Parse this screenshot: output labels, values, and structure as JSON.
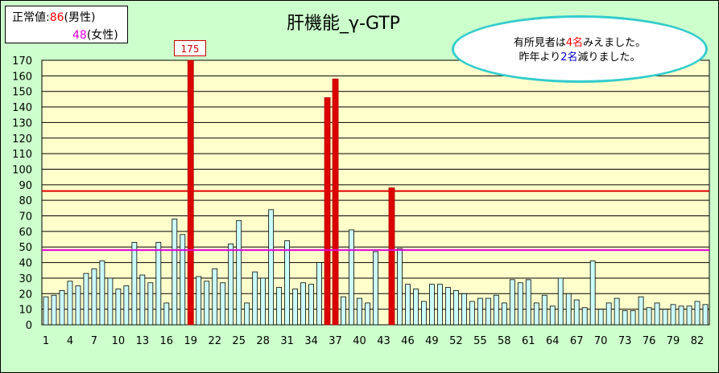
{
  "legend": {
    "row1_prefix": "正常値:",
    "male_value": "86",
    "male_label": "(男性)",
    "female_value": "48",
    "female_label": "(女性)"
  },
  "bubble": {
    "l1_a": "有所見者は",
    "l1_b": "4名",
    "l1_c": "みえました。",
    "l2_a": "昨年より",
    "l2_b": "2名",
    "l2_c": "減りました。"
  },
  "peak_label": "175",
  "colors": {
    "background": "#ccffcc",
    "plot_area": "#ffffcc",
    "normal_bar": "#ccffff",
    "highlight_bar": "#dd0000",
    "male_line": "#dd0000",
    "female_line": "#e000e0"
  },
  "chart_data": {
    "type": "bar",
    "title": "肝機能_γ-GTP",
    "ylim": [
      0,
      170
    ],
    "y_ticks": [
      0,
      10,
      20,
      30,
      40,
      50,
      60,
      70,
      80,
      90,
      100,
      110,
      120,
      130,
      140,
      150,
      160,
      170
    ],
    "x_tick_labels": [
      1,
      4,
      7,
      10,
      13,
      16,
      19,
      22,
      25,
      28,
      31,
      34,
      37,
      40,
      43,
      46,
      49,
      52,
      55,
      58,
      61,
      64,
      67,
      70,
      73,
      76,
      79,
      82
    ],
    "values": [
      18,
      19,
      22,
      28,
      25,
      33,
      36,
      41,
      30,
      23,
      25,
      53,
      32,
      27,
      53,
      14,
      68,
      58,
      175,
      31,
      28,
      36,
      27,
      52,
      67,
      14,
      34,
      30,
      74,
      24,
      54,
      23,
      27,
      26,
      40,
      146,
      158,
      18,
      61,
      17,
      14,
      47,
      0,
      88,
      49,
      26,
      23,
      15,
      26,
      26,
      24,
      22,
      20,
      15,
      17,
      17,
      19,
      14,
      29,
      27,
      29,
      14,
      19,
      12,
      30,
      20,
      16,
      11,
      41,
      10,
      14,
      17,
      9,
      9,
      18,
      11,
      14,
      10,
      13,
      12,
      12,
      15,
      13
    ],
    "highlighted": [
      19,
      36,
      37,
      44
    ],
    "reference_lines": [
      {
        "value": 86,
        "color": "#dd0000"
      },
      {
        "value": 48,
        "color": "#e000e0"
      }
    ]
  }
}
